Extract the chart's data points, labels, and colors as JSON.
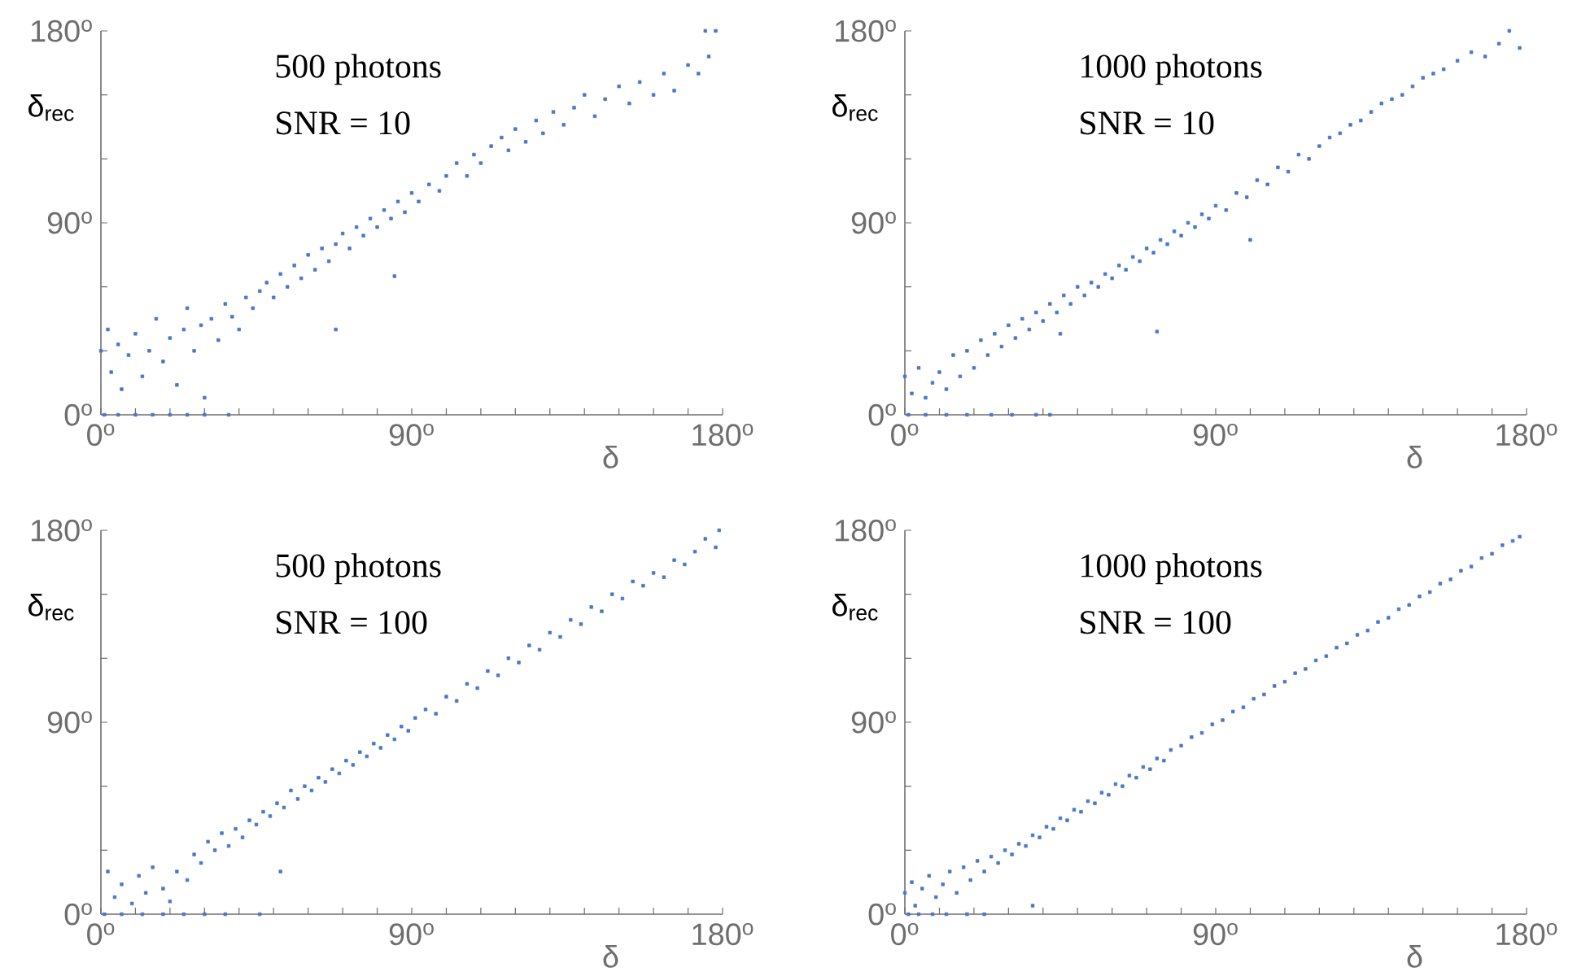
{
  "chart_data": [
    {
      "type": "scatter",
      "title": "500 photons",
      "subtitle": "SNR = 10",
      "xlabel": "δ",
      "ylabel": "δ$_{rec}$",
      "marker": "square",
      "color": "#4a78c8",
      "xlim": [
        0,
        180
      ],
      "ylim": [
        0,
        180
      ],
      "xticks": [
        {
          "value": 0,
          "label": "0$^{o}$"
        },
        {
          "value": 10,
          "label": null
        },
        {
          "value": 20,
          "label": null
        },
        {
          "value": 30,
          "label": null
        },
        {
          "value": 40,
          "label": null
        },
        {
          "value": 50,
          "label": null
        },
        {
          "value": 60,
          "label": null
        },
        {
          "value": 70,
          "label": null
        },
        {
          "value": 80,
          "label": null
        },
        {
          "value": 90,
          "label": "90$^{o}$"
        },
        {
          "value": 100,
          "label": null
        },
        {
          "value": 110,
          "label": null
        },
        {
          "value": 120,
          "label": null
        },
        {
          "value": 130,
          "label": null
        },
        {
          "value": 140,
          "label": null
        },
        {
          "value": 150,
          "label": null
        },
        {
          "value": 160,
          "label": null
        },
        {
          "value": 170,
          "label": null
        },
        {
          "value": 180,
          "label": "180$^{o}$"
        }
      ],
      "yticks": [
        {
          "value": 0,
          "label": "0$^{o}$"
        },
        {
          "value": 30,
          "label": null
        },
        {
          "value": 60,
          "label": null
        },
        {
          "value": 90,
          "label": "90$^{o}$"
        },
        {
          "value": 120,
          "label": null
        },
        {
          "value": 150,
          "label": null
        },
        {
          "value": 180,
          "label": "180$^{o}$"
        }
      ],
      "x": [
        0,
        2,
        3,
        5,
        6,
        8,
        10,
        12,
        14,
        16,
        18,
        20,
        22,
        24,
        25,
        27,
        29,
        30,
        32,
        34,
        36,
        38,
        40,
        42,
        44,
        46,
        48,
        50,
        52,
        54,
        56,
        58,
        60,
        62,
        64,
        66,
        68,
        70,
        72,
        74,
        76,
        78,
        80,
        82,
        84,
        86,
        88,
        90,
        92,
        95,
        98,
        100,
        103,
        106,
        108,
        110,
        113,
        116,
        118,
        120,
        123,
        126,
        128,
        131,
        134,
        137,
        140,
        143,
        146,
        150,
        153,
        156,
        160,
        163,
        166,
        170,
        173,
        176,
        178,
        175,
        68,
        85,
        1,
        5,
        10,
        15,
        20,
        25,
        30,
        37
      ],
      "values": [
        30,
        40,
        20,
        33,
        12,
        28,
        38,
        18,
        30,
        45,
        25,
        36,
        14,
        40,
        50,
        30,
        42,
        8,
        45,
        35,
        52,
        46,
        40,
        55,
        50,
        58,
        62,
        55,
        66,
        60,
        70,
        64,
        75,
        68,
        78,
        72,
        80,
        85,
        78,
        88,
        84,
        92,
        88,
        96,
        92,
        100,
        95,
        104,
        100,
        108,
        105,
        112,
        118,
        112,
        122,
        118,
        126,
        130,
        124,
        134,
        128,
        138,
        132,
        142,
        136,
        144,
        150,
        140,
        148,
        154,
        146,
        156,
        150,
        160,
        152,
        164,
        160,
        168,
        180,
        180,
        40,
        65,
        0,
        0,
        0,
        0,
        0,
        0,
        0,
        0
      ]
    },
    {
      "type": "scatter",
      "title": "1000 photons",
      "subtitle": "SNR = 10",
      "xlabel": "δ",
      "ylabel": "δ$_{rec}$",
      "marker": "square",
      "color": "#4a78c8",
      "xlim": [
        0,
        180
      ],
      "ylim": [
        0,
        180
      ],
      "xticks": [
        {
          "value": 0,
          "label": "0$^{o}$"
        },
        {
          "value": 10,
          "label": null
        },
        {
          "value": 20,
          "label": null
        },
        {
          "value": 30,
          "label": null
        },
        {
          "value": 40,
          "label": null
        },
        {
          "value": 50,
          "label": null
        },
        {
          "value": 60,
          "label": null
        },
        {
          "value": 70,
          "label": null
        },
        {
          "value": 80,
          "label": null
        },
        {
          "value": 90,
          "label": "90$^{o}$"
        },
        {
          "value": 100,
          "label": null
        },
        {
          "value": 110,
          "label": null
        },
        {
          "value": 120,
          "label": null
        },
        {
          "value": 130,
          "label": null
        },
        {
          "value": 140,
          "label": null
        },
        {
          "value": 150,
          "label": null
        },
        {
          "value": 160,
          "label": null
        },
        {
          "value": 170,
          "label": null
        },
        {
          "value": 180,
          "label": "180$^{o}$"
        }
      ],
      "yticks": [
        {
          "value": 0,
          "label": "0$^{o}$"
        },
        {
          "value": 30,
          "label": null
        },
        {
          "value": 60,
          "label": null
        },
        {
          "value": 90,
          "label": "90$^{o}$"
        },
        {
          "value": 120,
          "label": null
        },
        {
          "value": 150,
          "label": null
        },
        {
          "value": 180,
          "label": "180$^{o}$"
        }
      ],
      "x": [
        0,
        2,
        4,
        6,
        8,
        10,
        12,
        14,
        16,
        18,
        20,
        22,
        24,
        26,
        28,
        30,
        32,
        34,
        36,
        38,
        40,
        42,
        44,
        46,
        48,
        50,
        52,
        54,
        56,
        58,
        60,
        62,
        64,
        66,
        68,
        70,
        72,
        74,
        76,
        78,
        80,
        82,
        84,
        86,
        88,
        90,
        93,
        96,
        99,
        102,
        105,
        108,
        111,
        114,
        117,
        120,
        123,
        126,
        129,
        132,
        135,
        138,
        141,
        144,
        147,
        150,
        153,
        156,
        160,
        164,
        168,
        172,
        175,
        178,
        45,
        73,
        100,
        1,
        6,
        12,
        18,
        25,
        31,
        38,
        42
      ],
      "values": [
        18,
        10,
        22,
        8,
        15,
        20,
        12,
        28,
        18,
        30,
        22,
        35,
        28,
        38,
        32,
        42,
        36,
        45,
        40,
        48,
        44,
        52,
        48,
        56,
        52,
        60,
        56,
        62,
        60,
        66,
        64,
        70,
        68,
        74,
        72,
        78,
        76,
        82,
        80,
        86,
        84,
        90,
        88,
        94,
        92,
        98,
        96,
        104,
        102,
        110,
        108,
        116,
        114,
        122,
        120,
        126,
        130,
        132,
        136,
        138,
        142,
        146,
        148,
        150,
        154,
        158,
        160,
        162,
        166,
        170,
        168,
        174,
        180,
        172,
        38,
        39,
        82,
        0,
        0,
        0,
        0,
        0,
        0,
        0,
        0
      ]
    },
    {
      "type": "scatter",
      "title": "500 photons",
      "subtitle": "SNR = 100",
      "xlabel": "δ",
      "ylabel": "δ$_{rec}$",
      "marker": "square",
      "color": "#4a78c8",
      "xlim": [
        0,
        180
      ],
      "ylim": [
        0,
        180
      ],
      "xticks": [
        {
          "value": 0,
          "label": "0$^{o}$"
        },
        {
          "value": 10,
          "label": null
        },
        {
          "value": 20,
          "label": null
        },
        {
          "value": 30,
          "label": null
        },
        {
          "value": 40,
          "label": null
        },
        {
          "value": 50,
          "label": null
        },
        {
          "value": 60,
          "label": null
        },
        {
          "value": 70,
          "label": null
        },
        {
          "value": 80,
          "label": null
        },
        {
          "value": 90,
          "label": "90$^{o}$"
        },
        {
          "value": 100,
          "label": null
        },
        {
          "value": 110,
          "label": null
        },
        {
          "value": 120,
          "label": null
        },
        {
          "value": 130,
          "label": null
        },
        {
          "value": 140,
          "label": null
        },
        {
          "value": 150,
          "label": null
        },
        {
          "value": 160,
          "label": null
        },
        {
          "value": 170,
          "label": null
        },
        {
          "value": 180,
          "label": "180$^{o}$"
        }
      ],
      "yticks": [
        {
          "value": 0,
          "label": "0$^{o}$"
        },
        {
          "value": 30,
          "label": null
        },
        {
          "value": 60,
          "label": null
        },
        {
          "value": 90,
          "label": "90$^{o}$"
        },
        {
          "value": 120,
          "label": null
        },
        {
          "value": 150,
          "label": null
        },
        {
          "value": 180,
          "label": "180$^{o}$"
        }
      ],
      "x": [
        2,
        4,
        6,
        9,
        11,
        13,
        15,
        18,
        20,
        22,
        25,
        27,
        29,
        31,
        33,
        35,
        37,
        39,
        41,
        43,
        45,
        47,
        49,
        51,
        53,
        55,
        57,
        59,
        61,
        63,
        65,
        67,
        69,
        71,
        73,
        75,
        77,
        79,
        81,
        83,
        85,
        87,
        89,
        91,
        94,
        97,
        100,
        103,
        106,
        109,
        112,
        115,
        118,
        121,
        124,
        127,
        130,
        133,
        136,
        139,
        142,
        145,
        148,
        151,
        154,
        157,
        160,
        163,
        166,
        169,
        172,
        175,
        178,
        179,
        52,
        1,
        6,
        12,
        18,
        24,
        30,
        36,
        46
      ],
      "values": [
        20,
        8,
        14,
        5,
        18,
        10,
        22,
        12,
        6,
        20,
        16,
        28,
        24,
        34,
        30,
        38,
        32,
        40,
        36,
        44,
        42,
        48,
        46,
        52,
        50,
        58,
        54,
        60,
        58,
        64,
        62,
        68,
        66,
        72,
        70,
        76,
        74,
        80,
        78,
        84,
        82,
        88,
        86,
        92,
        96,
        94,
        102,
        100,
        108,
        106,
        114,
        112,
        120,
        118,
        126,
        124,
        132,
        130,
        138,
        136,
        144,
        142,
        150,
        148,
        156,
        154,
        160,
        158,
        166,
        164,
        170,
        176,
        172,
        180,
        20,
        0,
        0,
        0,
        0,
        0,
        0,
        0,
        0
      ]
    },
    {
      "type": "scatter",
      "title": "1000 photons",
      "subtitle": "SNR = 100",
      "xlabel": "δ",
      "ylabel": "δ$_{rec}$",
      "marker": "square",
      "color": "#4a78c8",
      "xlim": [
        0,
        180
      ],
      "ylim": [
        0,
        180
      ],
      "xticks": [
        {
          "value": 0,
          "label": "0$^{o}$"
        },
        {
          "value": 10,
          "label": null
        },
        {
          "value": 20,
          "label": null
        },
        {
          "value": 30,
          "label": null
        },
        {
          "value": 40,
          "label": null
        },
        {
          "value": 50,
          "label": null
        },
        {
          "value": 60,
          "label": null
        },
        {
          "value": 70,
          "label": null
        },
        {
          "value": 80,
          "label": null
        },
        {
          "value": 90,
          "label": "90$^{o}$"
        },
        {
          "value": 100,
          "label": null
        },
        {
          "value": 110,
          "label": null
        },
        {
          "value": 120,
          "label": null
        },
        {
          "value": 130,
          "label": null
        },
        {
          "value": 140,
          "label": null
        },
        {
          "value": 150,
          "label": null
        },
        {
          "value": 160,
          "label": null
        },
        {
          "value": 170,
          "label": null
        },
        {
          "value": 180,
          "label": "180$^{o}$"
        }
      ],
      "yticks": [
        {
          "value": 0,
          "label": "0$^{o}$"
        },
        {
          "value": 30,
          "label": null
        },
        {
          "value": 60,
          "label": null
        },
        {
          "value": 90,
          "label": "90$^{o}$"
        },
        {
          "value": 120,
          "label": null
        },
        {
          "value": 150,
          "label": null
        },
        {
          "value": 180,
          "label": "180$^{o}$"
        }
      ],
      "x": [
        0,
        2,
        3,
        5,
        7,
        9,
        11,
        13,
        15,
        17,
        19,
        21,
        23,
        25,
        27,
        29,
        31,
        33,
        35,
        37,
        39,
        41,
        43,
        45,
        47,
        49,
        51,
        53,
        55,
        57,
        59,
        61,
        63,
        65,
        67,
        69,
        71,
        73,
        75,
        77,
        80,
        83,
        86,
        89,
        92,
        95,
        98,
        101,
        104,
        107,
        110,
        113,
        116,
        119,
        122,
        125,
        128,
        131,
        134,
        137,
        140,
        143,
        146,
        149,
        152,
        155,
        158,
        161,
        164,
        167,
        170,
        173,
        176,
        178,
        37,
        1,
        4,
        8,
        12,
        18,
        23
      ],
      "values": [
        10,
        15,
        4,
        12,
        18,
        8,
        14,
        20,
        10,
        22,
        16,
        25,
        20,
        27,
        24,
        30,
        28,
        33,
        32,
        37,
        36,
        41,
        40,
        45,
        44,
        49,
        48,
        53,
        52,
        57,
        56,
        61,
        60,
        65,
        64,
        69,
        68,
        73,
        72,
        77,
        79,
        83,
        85,
        89,
        91,
        95,
        97,
        101,
        103,
        107,
        109,
        113,
        115,
        119,
        121,
        125,
        127,
        131,
        133,
        137,
        139,
        143,
        145,
        149,
        151,
        155,
        157,
        161,
        163,
        167,
        169,
        173,
        175,
        177,
        4,
        0,
        0,
        0,
        0,
        0,
        0
      ]
    }
  ]
}
